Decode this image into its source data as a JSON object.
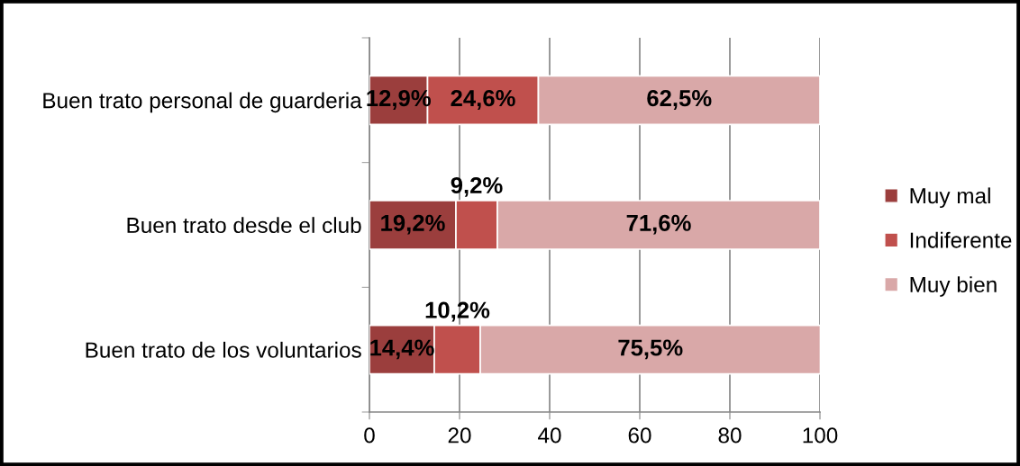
{
  "chart_data": {
    "type": "bar",
    "orientation": "horizontal",
    "stacked": true,
    "categories": [
      "Buen trato personal de guarderia",
      "Buen trato desde el club",
      "Buen trato de los voluntarios"
    ],
    "series": [
      {
        "name": "Muy mal",
        "color": "#9b3e3d",
        "values": [
          12.9,
          19.2,
          14.4
        ],
        "value_labels": [
          "12,9%",
          "19,2%",
          "14,4%"
        ]
      },
      {
        "name": "Indiferente",
        "color": "#c0504d",
        "values": [
          24.6,
          9.2,
          10.2
        ],
        "value_labels": [
          "24,6%",
          "9,2%",
          "10,2%"
        ]
      },
      {
        "name": "Muy bien",
        "color": "#d9a8a8",
        "values": [
          62.5,
          71.6,
          75.5
        ],
        "value_labels": [
          "62,5%",
          "71,6%",
          "75,5%"
        ]
      }
    ],
    "xlim": [
      0,
      100
    ],
    "xticks": [
      0,
      20,
      40,
      60,
      80,
      100
    ],
    "grid": "x",
    "legend": "right"
  }
}
